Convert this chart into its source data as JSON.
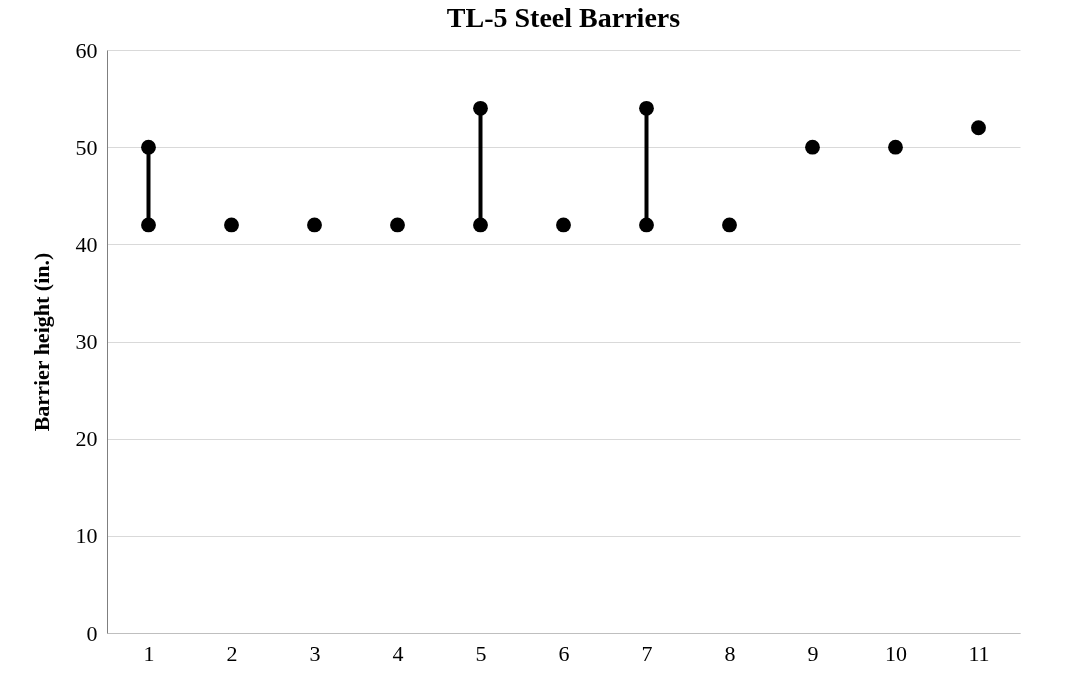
{
  "chart_data": {
    "type": "scatter",
    "title": "TL-5 Steel Barriers",
    "ylabel": "Barrier height (in.)",
    "categories": [
      "1",
      "2",
      "3",
      "4",
      "5",
      "6",
      "7",
      "8",
      "9",
      "10",
      "11"
    ],
    "series": [
      {
        "color": "#000000",
        "values": [
          null,
          42,
          42,
          42,
          null,
          42,
          null,
          42,
          50,
          50,
          52
        ]
      },
      {
        "type": "line",
        "color": "#000000",
        "x": [
          "1",
          "1"
        ],
        "values": [
          42,
          50
        ]
      },
      {
        "type": "line",
        "color": "#000000",
        "x": [
          "5",
          "5"
        ],
        "values": [
          42,
          54
        ]
      },
      {
        "type": "line",
        "color": "#000000",
        "x": [
          "7",
          "7"
        ],
        "values": [
          42,
          54
        ]
      }
    ],
    "ylim": [
      0,
      60
    ],
    "yticks": [
      0,
      10,
      20,
      30,
      40,
      50,
      60
    ],
    "grid": "y",
    "marker": "circle"
  }
}
